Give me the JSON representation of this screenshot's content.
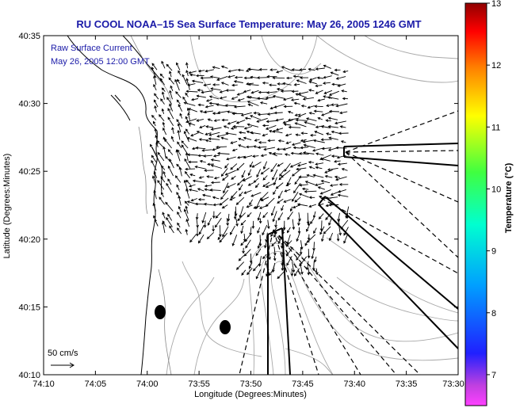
{
  "chart_data": {
    "type": "quiver",
    "title": "RU COOL  NOAA–15  Sea Surface Temperature:  May 26, 2005 1246 GMT",
    "annotation": [
      "Raw Surface Current",
      "May 26, 2005 12:00 GMT"
    ],
    "xlabel": "Longitude (Degrees:Minutes)",
    "ylabel": "Latitude (Degrees:Minutes)",
    "x_ticks": [
      "74:10",
      "74:05",
      "74:00",
      "73:55",
      "73:50",
      "73:45",
      "73:40",
      "73:35",
      "73:30"
    ],
    "y_ticks": [
      "40:35",
      "40:30",
      "40:25",
      "40:20",
      "40:15",
      "40:10"
    ],
    "xlim_minutes": [
      -70,
      -30
    ],
    "ylim_minutes": [
      10,
      35
    ],
    "colorbar": {
      "label": "Temperature (°C)",
      "ticks": [
        "13",
        "12",
        "11",
        "10",
        "9",
        "8",
        "7"
      ],
      "range": [
        6.5,
        13
      ]
    },
    "scale_arrow_label": "50 cm/s",
    "grid": false
  }
}
